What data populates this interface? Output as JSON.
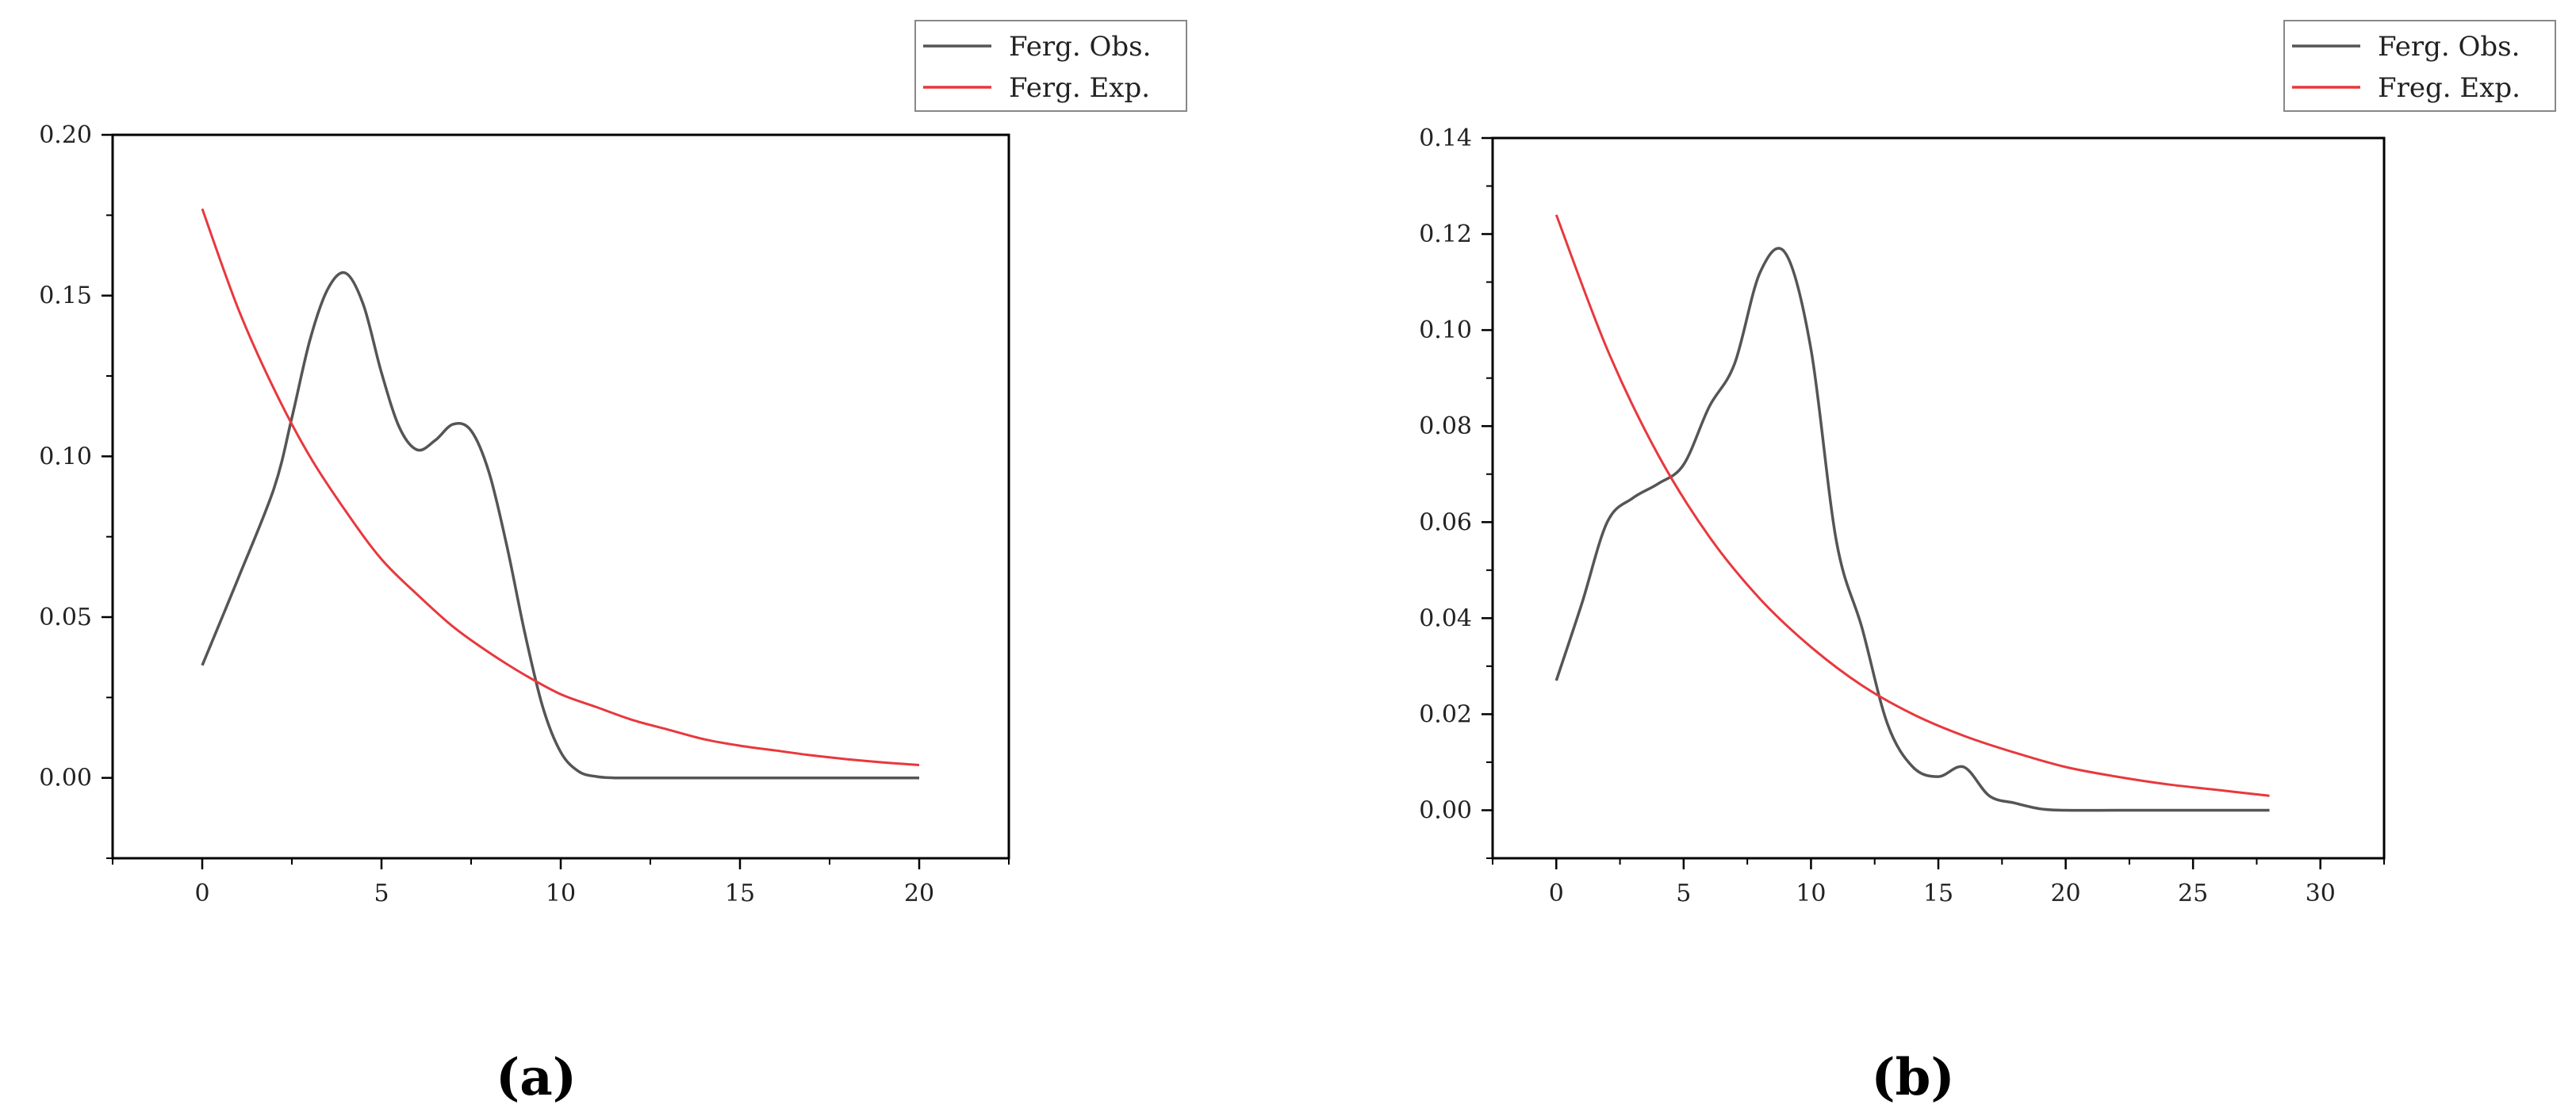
{
  "chart_data": [
    {
      "type": "line",
      "panel_label": "(a)",
      "xlim": [
        -2.5,
        22.5
      ],
      "ylim": [
        -0.025,
        0.2
      ],
      "xticks": [
        0,
        5,
        10,
        15,
        20
      ],
      "xtick_labels": [
        "0",
        "5",
        "10",
        "15",
        "20"
      ],
      "yticks": [
        0,
        0.05,
        0.1,
        0.15,
        0.2
      ],
      "ytick_labels": [
        "0.00",
        "0.05",
        "0.10",
        "0.15",
        "0.20"
      ],
      "legend_position": "top-right, outside plot",
      "series": [
        {
          "name": "Ferg. Obs.",
          "color": "#555555",
          "x": [
            0,
            1,
            2,
            2.5,
            3,
            3.5,
            4,
            4.5,
            5,
            5.5,
            6,
            6.5,
            7,
            7.5,
            8,
            8.5,
            9,
            9.5,
            10,
            10.5,
            11,
            11.5,
            12,
            13,
            14,
            15,
            16,
            17,
            18,
            19,
            20
          ],
          "y": [
            0.035,
            0.062,
            0.09,
            0.112,
            0.136,
            0.152,
            0.157,
            0.147,
            0.126,
            0.109,
            0.102,
            0.105,
            0.11,
            0.108,
            0.095,
            0.072,
            0.045,
            0.022,
            0.008,
            0.002,
            0.0004,
            0,
            0,
            0,
            0,
            0,
            0,
            0,
            0,
            0,
            0
          ]
        },
        {
          "name": "Ferg. Exp.",
          "color": "#e8383d",
          "x": [
            0,
            1,
            2,
            3,
            4,
            5,
            6,
            7,
            8,
            9,
            10,
            11,
            12,
            13,
            14,
            15,
            16,
            17,
            18,
            19,
            20
          ],
          "y": [
            0.177,
            0.146,
            0.121,
            0.1,
            0.083,
            0.068,
            0.057,
            0.047,
            0.039,
            0.032,
            0.026,
            0.022,
            0.018,
            0.015,
            0.012,
            0.01,
            0.0085,
            0.007,
            0.0058,
            0.0048,
            0.004
          ]
        }
      ]
    },
    {
      "type": "line",
      "panel_label": "(b)",
      "xlim": [
        -2.5,
        32.5
      ],
      "ylim": [
        -0.01,
        0.14
      ],
      "xticks": [
        0,
        5,
        10,
        15,
        20,
        25,
        30
      ],
      "xtick_labels": [
        "0",
        "5",
        "10",
        "15",
        "20",
        "25",
        "30"
      ],
      "yticks": [
        0,
        0.02,
        0.04,
        0.06,
        0.08,
        0.1,
        0.12,
        0.14
      ],
      "ytick_labels": [
        "0.00",
        "0.02",
        "0.04",
        "0.06",
        "0.08",
        "0.10",
        "0.12",
        "0.14"
      ],
      "legend_position": "top-right, outside plot",
      "series": [
        {
          "name": "Ferg. Obs.",
          "color": "#555555",
          "x": [
            0,
            1,
            2,
            3,
            4,
            5,
            6,
            7,
            8,
            9,
            10,
            11,
            12,
            13,
            14,
            15,
            16,
            17,
            18,
            19,
            20,
            22,
            24,
            26,
            28
          ],
          "y": [
            0.027,
            0.043,
            0.06,
            0.065,
            0.068,
            0.072,
            0.084,
            0.093,
            0.112,
            0.116,
            0.096,
            0.056,
            0.038,
            0.018,
            0.009,
            0.007,
            0.009,
            0.003,
            0.0015,
            0.0003,
            0,
            0,
            0,
            0,
            0
          ]
        },
        {
          "name": "Freg. Exp.",
          "color": "#e8383d",
          "x": [
            0,
            2,
            4,
            6,
            8,
            10,
            12,
            14,
            16,
            18,
            20,
            22,
            24,
            26,
            28
          ],
          "y": [
            0.124,
            0.096,
            0.074,
            0.057,
            0.044,
            0.034,
            0.026,
            0.02,
            0.0155,
            0.012,
            0.009,
            0.007,
            0.0054,
            0.0042,
            0.003
          ]
        }
      ]
    }
  ]
}
